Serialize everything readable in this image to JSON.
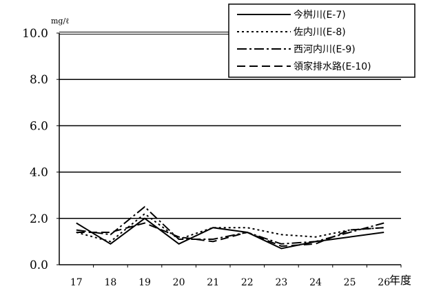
{
  "chart_data": {
    "type": "line",
    "unit_label": "mg/ℓ",
    "xlabel": "年度",
    "ylim": [
      0,
      10
    ],
    "yticks": [
      "0.0",
      "2.0",
      "4.0",
      "6.0",
      "8.0",
      "10.0"
    ],
    "categories": [
      "17",
      "18",
      "19",
      "20",
      "21",
      "22",
      "23",
      "24",
      "25",
      "26"
    ],
    "legend_position": "top-right",
    "grid": true,
    "series": [
      {
        "name": "今桝川(E-7)",
        "dash": "solid",
        "values": [
          1.8,
          0.9,
          2.0,
          0.9,
          1.6,
          1.4,
          0.7,
          1.0,
          1.2,
          1.4
        ]
      },
      {
        "name": "佐内川(E-8)",
        "dash": "dotted",
        "values": [
          1.4,
          1.0,
          2.2,
          1.1,
          1.6,
          1.6,
          1.3,
          1.2,
          1.5,
          1.6
        ]
      },
      {
        "name": "西河内川(E-9)",
        "dash": "dashdot",
        "values": [
          1.5,
          1.3,
          2.5,
          1.1,
          1.1,
          1.4,
          0.9,
          1.0,
          1.4,
          1.8
        ]
      },
      {
        "name": "領家排水路(E-10)",
        "dash": "dashed",
        "values": [
          1.4,
          1.4,
          1.8,
          1.2,
          1.0,
          1.4,
          0.8,
          0.9,
          1.5,
          1.6
        ]
      }
    ]
  }
}
